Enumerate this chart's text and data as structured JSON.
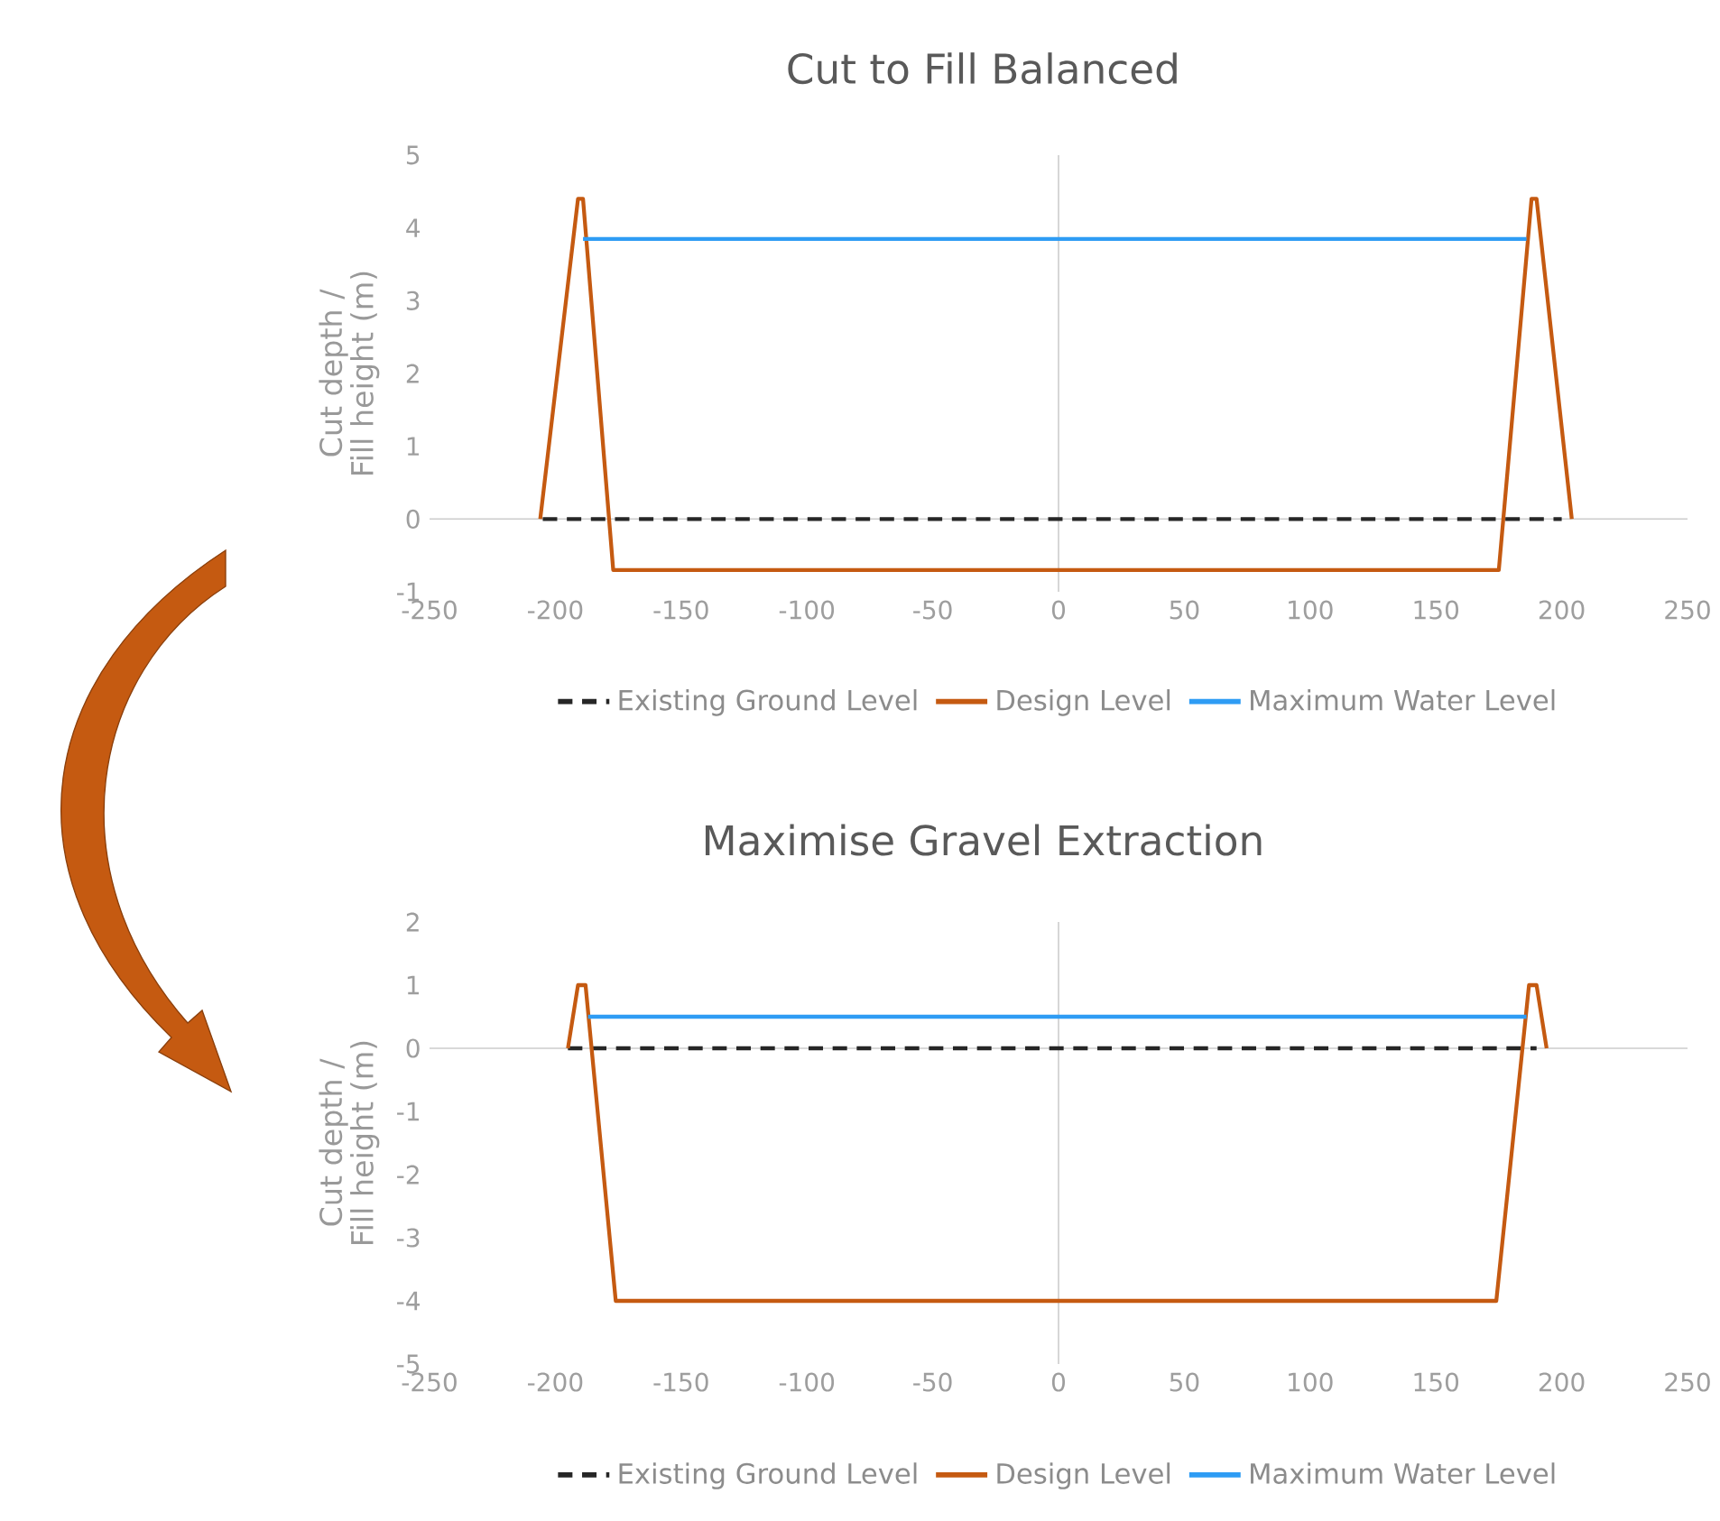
{
  "chart_data": [
    {
      "type": "line",
      "title": "Cut to Fill Balanced",
      "ylabel": "Cut depth / Fill height (m)",
      "xlim": [
        -250,
        250
      ],
      "ylim": [
        -1,
        5
      ],
      "xticks": [
        -250,
        -200,
        -150,
        -100,
        -50,
        0,
        50,
        100,
        150,
        200,
        250
      ],
      "yticks": [
        -1,
        0,
        1,
        2,
        3,
        4,
        5
      ],
      "legend": "bottom",
      "series": [
        {
          "name": "Existing Ground Level",
          "color": "#262626",
          "line_style": "dashed",
          "x": [
            -205,
            200
          ],
          "values": [
            0,
            0
          ]
        },
        {
          "name": "Design Level",
          "color": "#c55a11",
          "line_style": "solid",
          "x": [
            -206,
            -191,
            -189,
            -177,
            175,
            188,
            190,
            204
          ],
          "values": [
            0,
            4.4,
            4.4,
            -0.7,
            -0.7,
            4.4,
            4.4,
            0
          ]
        },
        {
          "name": "Maximum Water Level",
          "color": "#2e9cf4",
          "line_style": "solid",
          "x": [
            -189,
            186
          ],
          "values": [
            3.85,
            3.85
          ]
        }
      ]
    },
    {
      "type": "line",
      "title": "Maximise Gravel Extraction",
      "ylabel": "Cut depth / Fill height (m)",
      "xlim": [
        -250,
        250
      ],
      "ylim": [
        -5,
        2
      ],
      "xticks": [
        -250,
        -200,
        -150,
        -100,
        -50,
        0,
        50,
        100,
        150,
        200,
        250
      ],
      "yticks": [
        -5,
        -4,
        -3,
        -2,
        -1,
        0,
        1,
        2
      ],
      "legend": "bottom",
      "series": [
        {
          "name": "Existing Ground Level",
          "color": "#262626",
          "line_style": "dashed",
          "x": [
            -195,
            190
          ],
          "values": [
            0,
            0
          ]
        },
        {
          "name": "Design Level",
          "color": "#c55a11",
          "line_style": "solid",
          "x": [
            -195,
            -191,
            -188,
            -176,
            174,
            187,
            190,
            194
          ],
          "values": [
            0,
            1.0,
            1.0,
            -4.0,
            -4.0,
            1.0,
            1.0,
            0
          ]
        },
        {
          "name": "Maximum Water Level",
          "color": "#2e9cf4",
          "line_style": "solid",
          "x": [
            -187,
            186
          ],
          "values": [
            0.5,
            0.5
          ]
        }
      ]
    }
  ]
}
